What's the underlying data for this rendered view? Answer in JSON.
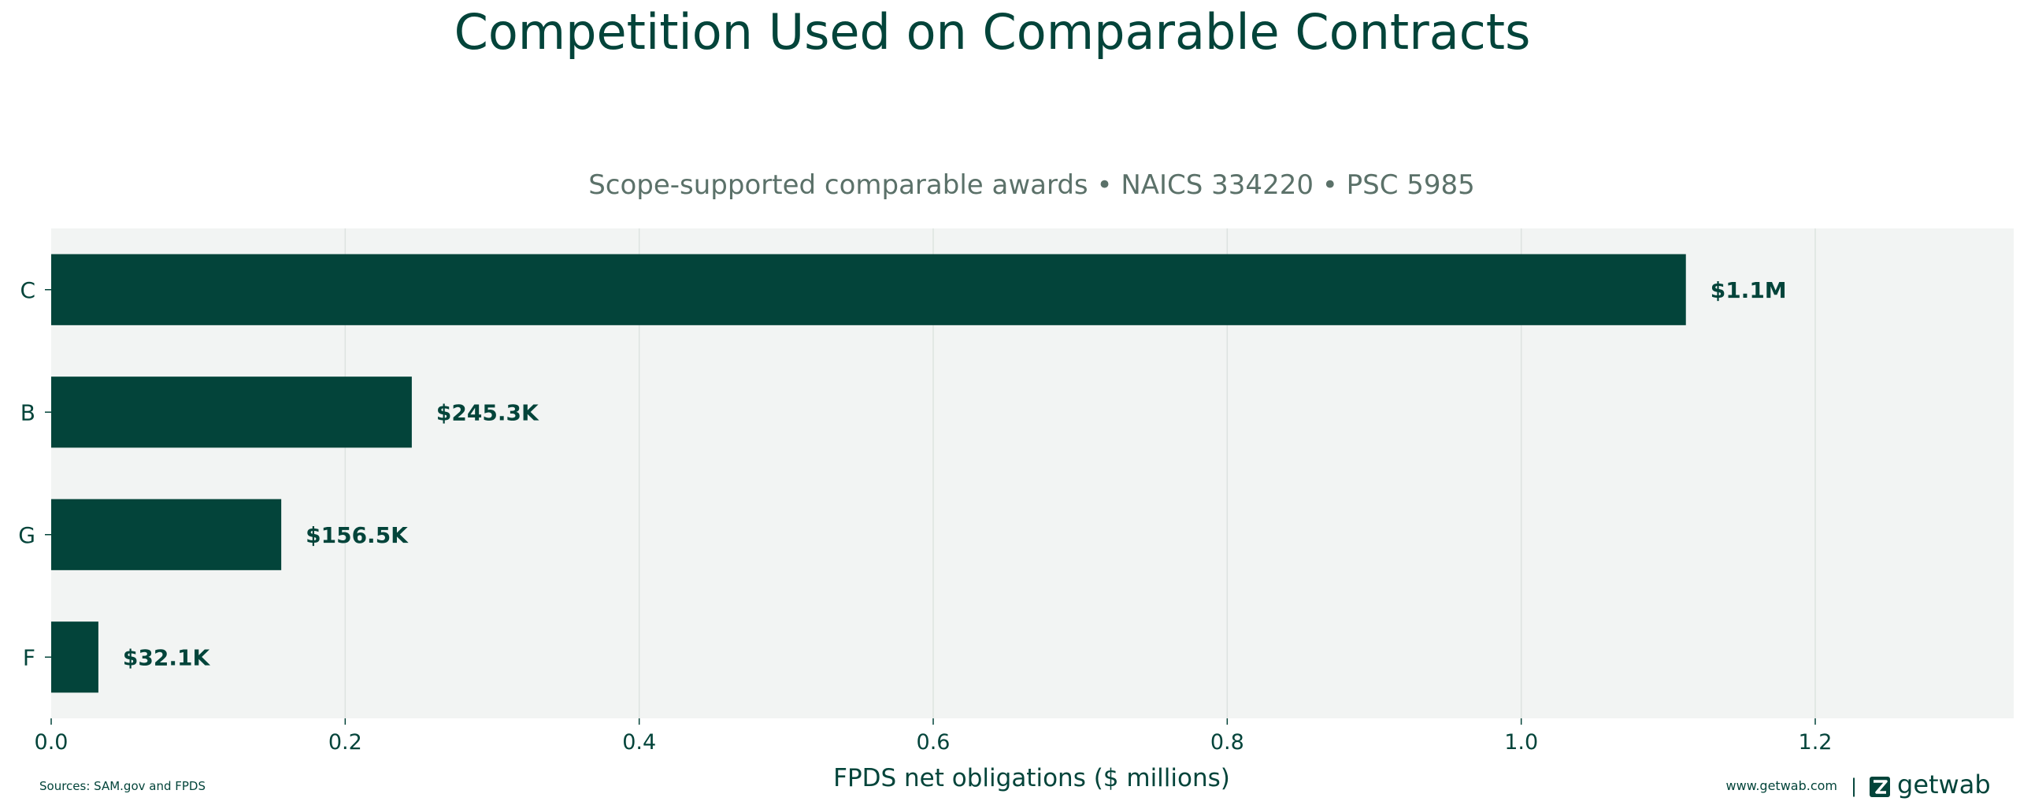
{
  "title": "Competition Used on Comparable Contracts",
  "subtitle": "Scope-supported comparable awards • NAICS 334220 • PSC 5985",
  "footer": {
    "source": "Sources: SAM.gov and FPDS",
    "website": "www.getwab.com",
    "separator": "|",
    "brand": "getwab"
  },
  "colors": {
    "bar": "#03443a",
    "title": "#03443a",
    "subtitle": "#5b7169",
    "plot_bg": "#f2f4f3",
    "grid": "#dde3e0",
    "text": "#03443a"
  },
  "chart_data": {
    "type": "bar",
    "orientation": "horizontal",
    "title": "Competition Used on Comparable Contracts",
    "subtitle": "Scope-supported comparable awards • NAICS 334220 • PSC 5985",
    "xlabel": "FPDS net obligations ($ millions)",
    "ylabel": "",
    "categories": [
      "C",
      "B",
      "G",
      "F"
    ],
    "values": [
      1.112,
      0.2453,
      0.1565,
      0.0321
    ],
    "data_labels": [
      "$1.1M",
      "$245.3K",
      "$156.5K",
      "$32.1K"
    ],
    "xlim": [
      0,
      1.335
    ],
    "xticks": [
      0.0,
      0.2,
      0.4,
      0.6,
      0.8,
      1.0,
      1.2
    ],
    "xtick_labels": [
      "0.0",
      "0.2",
      "0.4",
      "0.6",
      "0.8",
      "1.0",
      "1.2"
    ],
    "grid": "vertical",
    "legend": "none"
  }
}
